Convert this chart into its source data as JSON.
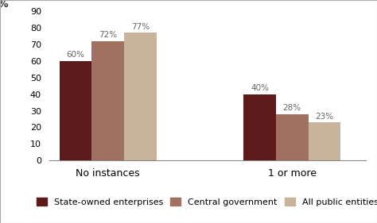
{
  "categories": [
    "No instances",
    "1 or more"
  ],
  "series": [
    {
      "label": "State-owned enterprises",
      "values": [
        60,
        40
      ],
      "color": "#5C1A1A"
    },
    {
      "label": "Central government",
      "values": [
        72,
        28
      ],
      "color": "#A07060"
    },
    {
      "label": "All public entities",
      "values": [
        77,
        23
      ],
      "color": "#C8B49A"
    }
  ],
  "ylim": [
    0,
    90
  ],
  "yticks": [
    0,
    10,
    20,
    30,
    40,
    50,
    60,
    70,
    80,
    90
  ],
  "bar_width": 0.22,
  "label_fontsize": 7.5,
  "legend_fontsize": 8,
  "axis_fontsize": 9,
  "tick_fontsize": 8,
  "background_color": "#ffffff",
  "border_color": "#aaaaaa",
  "label_color": "#666666",
  "group_centers": [
    0.5,
    1.75
  ]
}
